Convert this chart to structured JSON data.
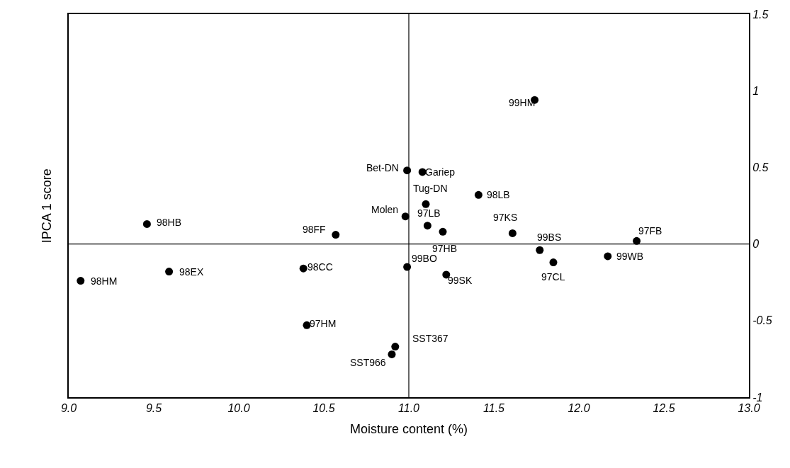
{
  "chart_data": {
    "type": "scatter",
    "xlabel": "Moisture content (%)",
    "ylabel": "IPCA 1 score",
    "xlim": [
      9.0,
      13.0
    ],
    "xticks": [
      {
        "value": 9.0,
        "label": "9.0"
      },
      9.5,
      {
        "value": 10.0,
        "label": "10.0"
      },
      10.5,
      {
        "value": 11.0,
        "label": "11.0"
      },
      11.5,
      {
        "value": 12.0,
        "label": "12.0"
      },
      12.5,
      {
        "value": 13.0,
        "label": "13.0"
      }
    ],
    "ylim": [
      -1,
      1.5
    ],
    "yticks": [
      -1,
      -0.5,
      0,
      0.5,
      1,
      1.5
    ],
    "marker": "circle",
    "ref_lines": [
      {
        "axis": "x",
        "value": 11.0,
        "color": "#000000"
      },
      {
        "axis": "y",
        "value": 0,
        "color": "#000000"
      }
    ],
    "series": [
      {
        "color": "#000000",
        "x": [
          9.07,
          9.46,
          9.59,
          10.38,
          10.4,
          10.57,
          10.98,
          10.99,
          10.99,
          10.9,
          10.92,
          11.08,
          11.1,
          11.11,
          11.2,
          11.22,
          11.41,
          11.61,
          11.77,
          11.85,
          12.17,
          12.34,
          11.74
        ],
        "values": [
          -0.24,
          0.13,
          -0.18,
          -0.16,
          -0.53,
          0.06,
          0.18,
          0.48,
          -0.15,
          -0.72,
          -0.67,
          0.47,
          0.26,
          0.12,
          0.08,
          -0.2,
          0.32,
          0.07,
          -0.04,
          -0.12,
          -0.08,
          0.02,
          0.94
        ]
      }
    ],
    "annotations": [
      {
        "text": "98HM",
        "x": 9.07,
        "y": -0.24
      },
      {
        "text": "98HB",
        "x": 9.46,
        "y": 0.13
      },
      {
        "text": "98EX",
        "x": 9.59,
        "y": -0.18
      },
      {
        "text": "98CC",
        "x": 10.38,
        "y": -0.16
      },
      {
        "text": "97HM",
        "x": 10.4,
        "y": -0.53
      },
      {
        "text": "98FF",
        "x": 10.57,
        "y": 0.06
      },
      {
        "text": "Molen",
        "x": 10.98,
        "y": 0.18
      },
      {
        "text": "Bet-DN",
        "x": 10.99,
        "y": 0.48
      },
      {
        "text": "99BO",
        "x": 10.99,
        "y": -0.15
      },
      {
        "text": "SST966",
        "x": 10.9,
        "y": -0.72
      },
      {
        "text": "SST367",
        "x": 10.92,
        "y": -0.67
      },
      {
        "text": "Gariep",
        "x": 11.08,
        "y": 0.47
      },
      {
        "text": "Tug-DN",
        "x": 11.1,
        "y": 0.26
      },
      {
        "text": "97LB",
        "x": 11.11,
        "y": 0.12
      },
      {
        "text": "97HB",
        "x": 11.2,
        "y": 0.08
      },
      {
        "text": "99SK",
        "x": 11.22,
        "y": -0.2
      },
      {
        "text": "98LB",
        "x": 11.41,
        "y": 0.32
      },
      {
        "text": "97KS",
        "x": 11.61,
        "y": 0.07
      },
      {
        "text": "99BS",
        "x": 11.77,
        "y": -0.04
      },
      {
        "text": "97CL",
        "x": 11.85,
        "y": -0.12
      },
      {
        "text": "99WB",
        "x": 12.17,
        "y": -0.08
      },
      {
        "text": "97FB",
        "x": 12.34,
        "y": 0.02
      },
      {
        "text": "99HM",
        "x": 11.74,
        "y": 0.94
      }
    ]
  }
}
